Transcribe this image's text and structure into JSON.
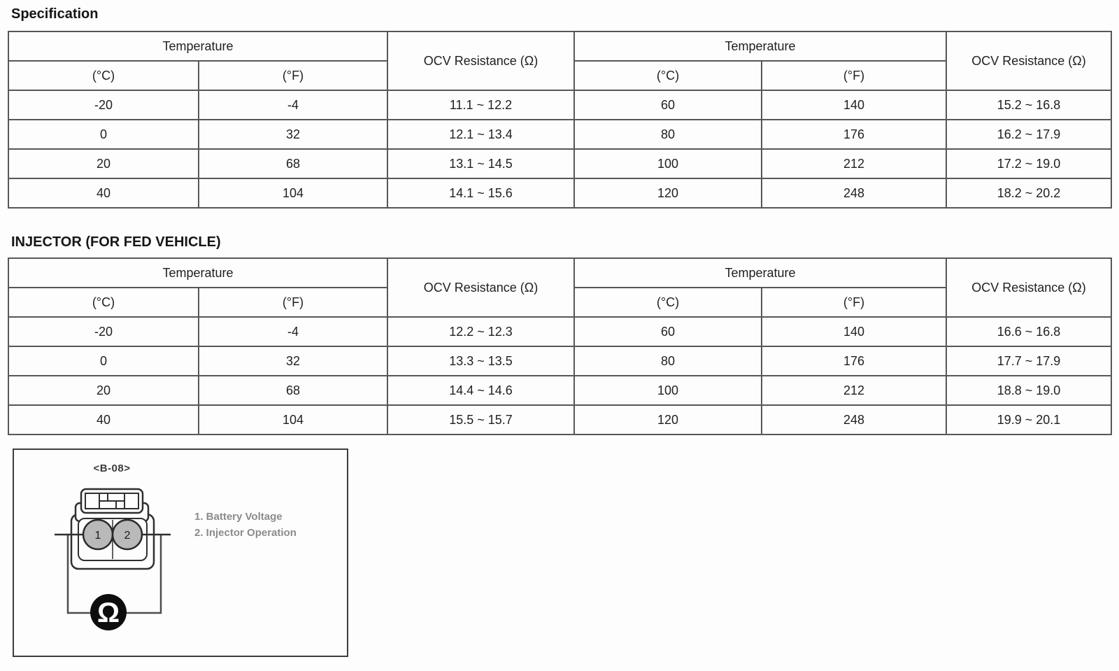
{
  "sections": [
    {
      "heading": "Specification",
      "table": {
        "header_groups": [
          "Temperature",
          "OCV Resistance (Ω)",
          "Temperature",
          "OCV Resistance (Ω)"
        ],
        "header_units": [
          "(°C)",
          "(°F)",
          "(°C)",
          "(°F)"
        ],
        "rows": [
          [
            "-20",
            "-4",
            "11.1 ~ 12.2",
            "60",
            "140",
            "15.2 ~ 16.8"
          ],
          [
            "0",
            "32",
            "12.1 ~ 13.4",
            "80",
            "176",
            "16.2 ~ 17.9"
          ],
          [
            "20",
            "68",
            "13.1 ~ 14.5",
            "100",
            "212",
            "17.2 ~ 19.0"
          ],
          [
            "40",
            "104",
            "14.1 ~ 15.6",
            "120",
            "248",
            "18.2 ~ 20.2"
          ]
        ]
      }
    },
    {
      "heading": "INJECTOR (FOR FED VEHICLE)",
      "table": {
        "header_groups": [
          "Temperature",
          "OCV Resistance (Ω)",
          "Temperature",
          "OCV Resistance (Ω)"
        ],
        "header_units": [
          "(°C)",
          "(°F)",
          "(°C)",
          "(°F)"
        ],
        "rows": [
          [
            "-20",
            "-4",
            "12.2 ~ 12.3",
            "60",
            "140",
            "16.6 ~ 16.8"
          ],
          [
            "0",
            "32",
            "13.3 ~ 13.5",
            "80",
            "176",
            "17.7 ~ 17.9"
          ],
          [
            "20",
            "68",
            "14.4 ~ 14.6",
            "100",
            "212",
            "18.8 ~ 19.0"
          ],
          [
            "40",
            "104",
            "15.5 ~ 15.7",
            "120",
            "248",
            "19.9 ~ 20.1"
          ]
        ]
      }
    }
  ],
  "diagram": {
    "connector_label": "<B-08>",
    "pins": [
      "1",
      "2"
    ],
    "ohm_symbol": "Ω",
    "legend": [
      "1. Battery Voltage",
      "2. Injector Operation"
    ],
    "colors": {
      "pin_fill": "#b9b9b9",
      "meter_fill": "#0d0d0d",
      "legend_text": "#8b8b8b",
      "outline": "#2f2f2f",
      "wire": "#4d4d4d"
    }
  }
}
